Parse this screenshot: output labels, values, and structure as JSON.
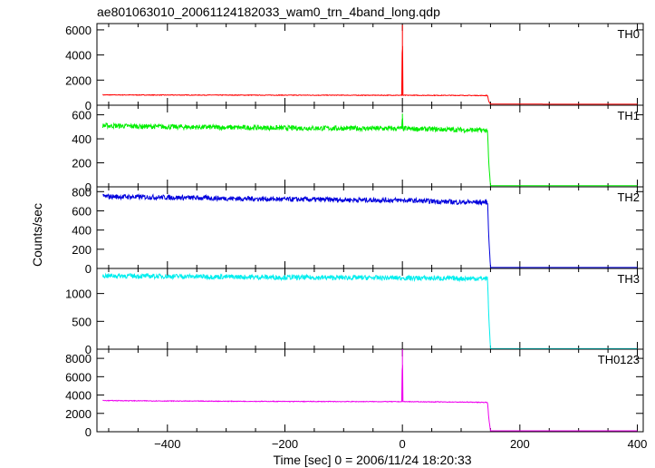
{
  "chart_data": {
    "type": "line",
    "title": "ae801063010_20061124182033_wam0_trn_4band_long.qdp",
    "xlabel": "Time [sec] 0 = 2006/11/24 18:20:33",
    "ylabel": "Counts/sec",
    "xlim": [
      -520,
      410
    ],
    "x_ticks": [
      "−400",
      "−200",
      "0",
      "200",
      "400"
    ],
    "x_tick_values": [
      -400,
      -200,
      0,
      200,
      400
    ],
    "grid": false,
    "shared_x": true,
    "panels": [
      {
        "name": "TH0",
        "color": "#ff0000",
        "ylim": [
          0,
          6500
        ],
        "y_ticks": [
          "0",
          "2000",
          "4000",
          "6000"
        ],
        "y_tick_values": [
          0,
          2000,
          4000,
          6000
        ],
        "x": [
          -510,
          -400,
          -200,
          -1,
          0,
          1,
          100,
          145,
          147,
          150,
          200,
          300,
          400
        ],
        "values": [
          820,
          810,
          800,
          790,
          6400,
          790,
          780,
          770,
          300,
          90,
          85,
          80,
          80
        ]
      },
      {
        "name": "TH1",
        "color": "#00ee00",
        "ylim": [
          0,
          680
        ],
        "y_ticks": [
          "0",
          "200",
          "400",
          "600"
        ],
        "y_tick_values": [
          0,
          200,
          400,
          600
        ],
        "x": [
          -510,
          -400,
          -200,
          -1,
          0,
          1,
          100,
          145,
          147,
          150,
          200,
          300,
          400
        ],
        "values": [
          510,
          500,
          490,
          485,
          610,
          485,
          475,
          470,
          200,
          10,
          10,
          10,
          10
        ]
      },
      {
        "name": "TH2",
        "color": "#0000dd",
        "ylim": [
          0,
          850
        ],
        "y_ticks": [
          "0",
          "200",
          "400",
          "600",
          "800"
        ],
        "y_tick_values": [
          0,
          200,
          400,
          600,
          800
        ],
        "x": [
          -510,
          -400,
          -200,
          0,
          100,
          145,
          147,
          150,
          200,
          300,
          400
        ],
        "values": [
          750,
          740,
          720,
          710,
          690,
          690,
          330,
          10,
          10,
          10,
          10
        ]
      },
      {
        "name": "TH3",
        "color": "#00eeee",
        "ylim": [
          0,
          1450
        ],
        "y_ticks": [
          "0",
          "500",
          "1000"
        ],
        "y_tick_values": [
          0,
          500,
          1000
        ],
        "x": [
          -510,
          -400,
          -200,
          0,
          100,
          145,
          147,
          150,
          200,
          300,
          400
        ],
        "values": [
          1320,
          1310,
          1290,
          1280,
          1270,
          1270,
          600,
          10,
          10,
          10,
          10
        ]
      },
      {
        "name": "TH0123",
        "color": "#ee00ee",
        "ylim": [
          0,
          9000
        ],
        "y_ticks": [
          "0",
          "2000",
          "4000",
          "6000",
          "8000"
        ],
        "y_tick_values": [
          0,
          2000,
          4000,
          6000,
          8000
        ],
        "x": [
          -510,
          -400,
          -200,
          -1,
          0,
          1,
          100,
          145,
          147,
          150,
          200,
          300,
          400
        ],
        "values": [
          3400,
          3350,
          3300,
          3280,
          9000,
          3280,
          3230,
          3200,
          1500,
          100,
          100,
          100,
          100
        ]
      }
    ]
  }
}
